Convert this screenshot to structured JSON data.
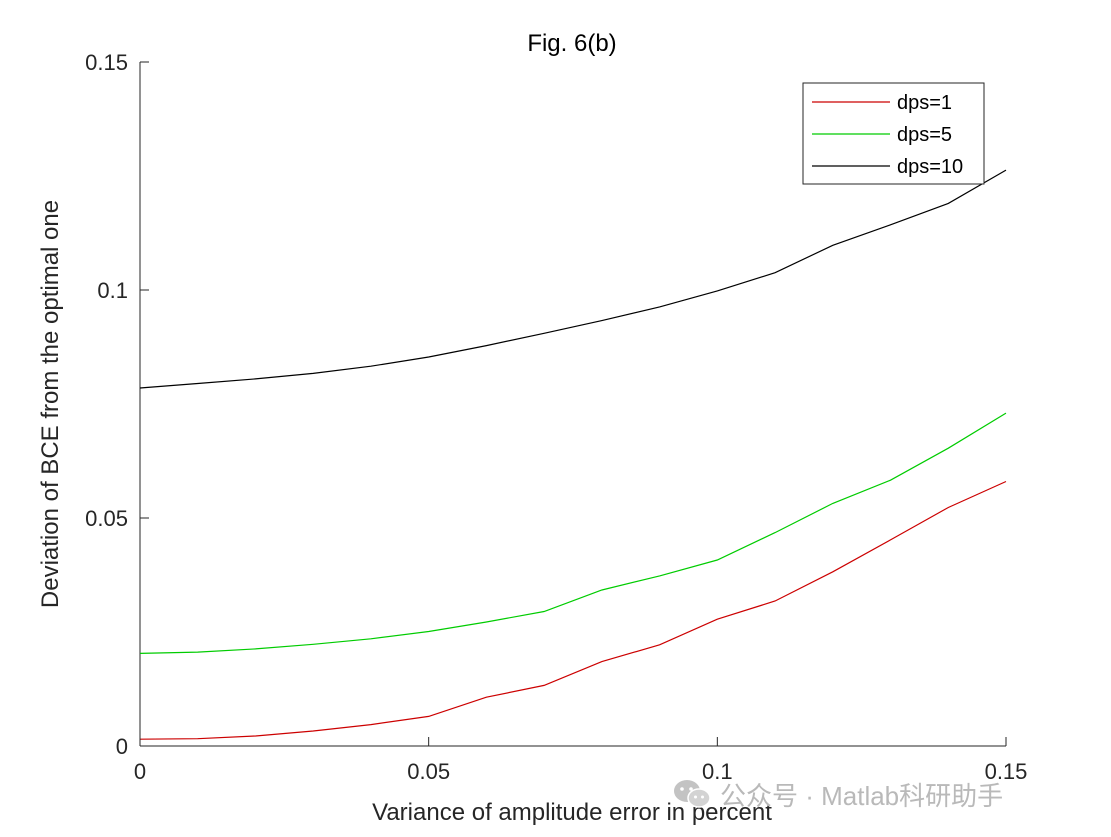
{
  "chart_data": {
    "type": "line",
    "title": "Fig. 6(b)",
    "xlabel": "Variance of amplitude error in percent",
    "ylabel": "Deviation of BCE from the optimal one",
    "xlim": [
      0,
      0.15
    ],
    "ylim": [
      0,
      0.15
    ],
    "xticks": [
      0,
      0.05,
      0.1,
      0.15
    ],
    "xtick_labels": [
      "0",
      "0.05",
      "0.1",
      "0.15"
    ],
    "yticks": [
      0,
      0.05,
      0.1,
      0.15
    ],
    "ytick_labels": [
      "0",
      "0.05",
      "0.1",
      "0.15"
    ],
    "grid": false,
    "legend_position": "top-right",
    "x": [
      0,
      0.01,
      0.02,
      0.03,
      0.04,
      0.05,
      0.06,
      0.07,
      0.08,
      0.09,
      0.1,
      0.11,
      0.12,
      0.13,
      0.14,
      0.15
    ],
    "series": [
      {
        "name": "dps=1",
        "color": "#cc0000",
        "values": [
          0.0015,
          0.0016,
          0.0022,
          0.0033,
          0.0047,
          0.0065,
          0.0107,
          0.0133,
          0.0185,
          0.0222,
          0.0278,
          0.0318,
          0.0382,
          0.0452,
          0.0523,
          0.058
        ]
      },
      {
        "name": "dps=5",
        "color": "#00cc00",
        "values": [
          0.0203,
          0.0206,
          0.0213,
          0.0223,
          0.0235,
          0.0251,
          0.0272,
          0.0295,
          0.0342,
          0.0373,
          0.0408,
          0.0468,
          0.0532,
          0.0583,
          0.0653,
          0.073
        ]
      },
      {
        "name": "dps=10",
        "color": "#000000",
        "values": [
          0.0785,
          0.0795,
          0.0805,
          0.0817,
          0.0833,
          0.0853,
          0.0878,
          0.0905,
          0.0933,
          0.0963,
          0.0998,
          0.1038,
          0.1098,
          0.1143,
          0.119,
          0.1263
        ]
      }
    ]
  },
  "watermark": {
    "icon": "wechat-icon",
    "text": "公众号 · Matlab科研助手"
  }
}
